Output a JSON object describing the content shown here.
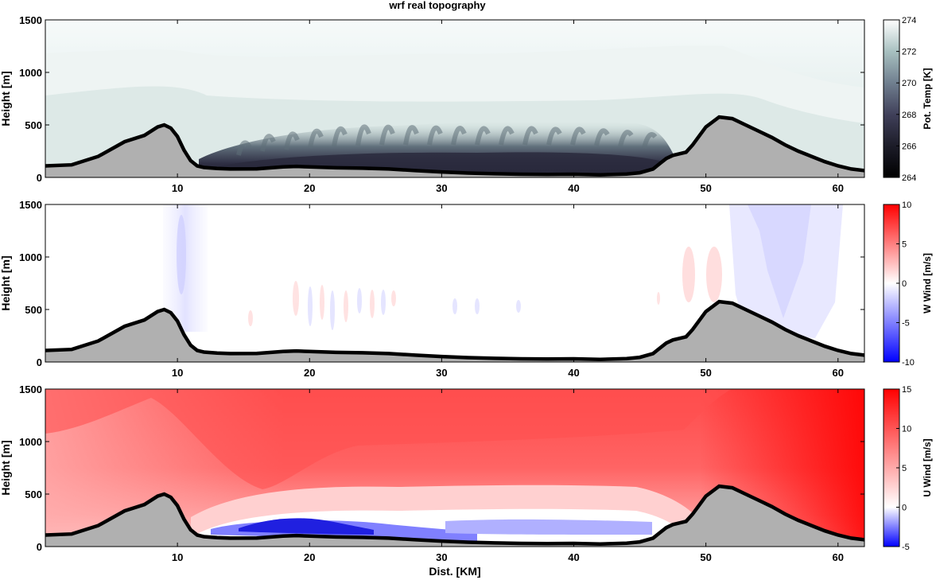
{
  "title": "wrf real topography",
  "xlabel": "Dist. [KM]",
  "chart_data": [
    {
      "type": "heatmap",
      "field": "potential_temperature",
      "ylabel": "Height [m]",
      "colorbar_label": "Pot. Temp [K]",
      "colormap": "bone",
      "clim": [
        264,
        274
      ],
      "colorbar_ticks": [
        "264",
        "266",
        "268",
        "270",
        "272",
        "274"
      ],
      "xlim": [
        0,
        62
      ],
      "ylim": [
        0,
        1500
      ],
      "xticks": [
        "10",
        "20",
        "30",
        "40",
        "50",
        "60"
      ],
      "yticks": [
        "0",
        "500",
        "1000",
        "1500"
      ]
    },
    {
      "type": "heatmap",
      "field": "vertical_wind",
      "ylabel": "Height [m]",
      "colorbar_label": "W Wind [m/s]",
      "colormap": "blue-white-red",
      "clim": [
        -10,
        10
      ],
      "colorbar_ticks": [
        "-10",
        "-5",
        "0",
        "5",
        "10"
      ],
      "xlim": [
        0,
        62
      ],
      "ylim": [
        0,
        1500
      ],
      "xticks": [
        "10",
        "20",
        "30",
        "40",
        "50",
        "60"
      ],
      "yticks": [
        "0",
        "500",
        "1000",
        "1500"
      ]
    },
    {
      "type": "heatmap",
      "field": "horizontal_wind",
      "ylabel": "Height [m]",
      "colorbar_label": "U Wind [m/s]",
      "colormap": "blue-white-red",
      "clim": [
        -5,
        15
      ],
      "colorbar_ticks": [
        "-5",
        "0",
        "5",
        "10",
        "15"
      ],
      "xlim": [
        0,
        62
      ],
      "ylim": [
        0,
        1500
      ],
      "xticks": [
        "10",
        "20",
        "30",
        "40",
        "50",
        "60"
      ],
      "yticks": [
        "0",
        "500",
        "1000",
        "1500"
      ]
    }
  ],
  "topography": {
    "x": [
      0,
      2,
      4,
      6,
      7.5,
      8.5,
      9,
      9.5,
      10,
      10.5,
      11,
      11.5,
      12,
      13,
      14,
      16,
      18,
      19,
      20,
      22,
      24,
      26,
      28,
      30,
      32,
      34,
      36,
      38,
      40,
      42,
      44,
      45,
      46,
      46.5,
      47,
      47.5,
      48,
      48.5,
      49,
      50,
      51,
      52,
      53,
      54,
      55,
      56,
      57,
      58,
      59,
      60,
      61,
      62
    ],
    "y": [
      110,
      120,
      200,
      340,
      400,
      480,
      500,
      470,
      390,
      260,
      160,
      110,
      95,
      85,
      80,
      82,
      100,
      105,
      100,
      92,
      88,
      80,
      65,
      52,
      42,
      35,
      30,
      28,
      30,
      25,
      32,
      45,
      80,
      130,
      180,
      210,
      225,
      240,
      310,
      480,
      575,
      560,
      500,
      440,
      380,
      310,
      250,
      200,
      150,
      110,
      80,
      65
    ],
    "fill": "#b0b0b0"
  },
  "colors": {
    "ground": "#b0b0b0",
    "outline": "#000000",
    "red": "#ff0000",
    "blue": "#0000ff"
  }
}
